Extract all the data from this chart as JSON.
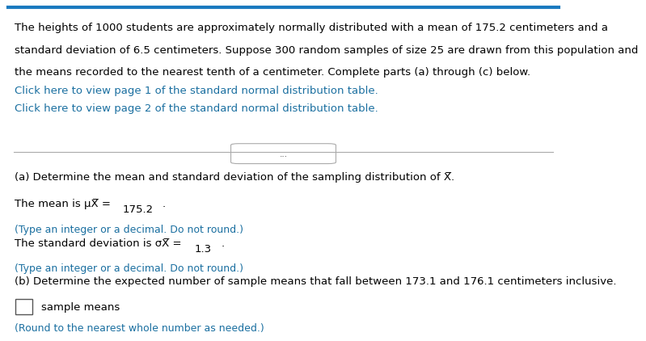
{
  "bg_color": "#ffffff",
  "top_border_color": "#1a7abf",
  "paragraph_lines": [
    "The heights of 1000 students are approximately normally distributed with a mean of 175.2 centimeters and a",
    "standard deviation of 6.5 centimeters. Suppose 300 random samples of size 25 are drawn from this population and",
    "the means recorded to the nearest tenth of a centimeter. Complete parts (a) through (c) below."
  ],
  "link1": "Click here to view page 1 of the standard normal distribution table.",
  "link2": "Click here to view page 2 of the standard normal distribution table.",
  "dots_label": "...",
  "part_a_label": "(a) Determine the mean and standard deviation of the sampling distribution of X̅.",
  "mean_line_pre": "The mean is μ",
  "mean_sub": "X̅",
  "mean_eq": " = ",
  "mean_value": "175.2",
  "mean_note": "(Type an integer or a decimal. Do not round.)",
  "std_line_pre": "The standard deviation is σ",
  "std_sub": "X̅",
  "std_eq": " = ",
  "std_value": "1.3",
  "std_note": "(Type an integer or a decimal. Do not round.)",
  "part_b_text": "(b) Determine the expected number of sample means that fall between 173.1 and 176.1 centimeters inclusive.",
  "answer_box_label": "sample means",
  "round_note": "(Round to the nearest whole number as needed.)",
  "text_color": "#000000",
  "link_color": "#1a6fa0",
  "note_color": "#1a6fa0",
  "highlight_color": "#c8d8e8",
  "font_size_main": 9.5,
  "font_size_note": 9.0
}
